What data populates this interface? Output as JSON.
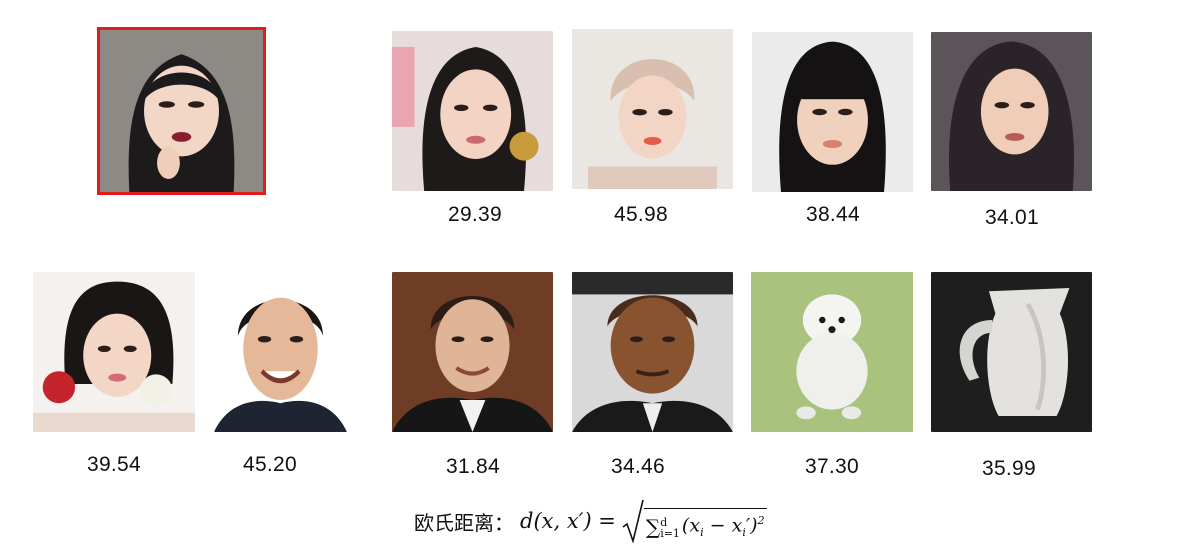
{
  "query": {
    "name": "query-face-photo"
  },
  "results": [
    {
      "id": "r1",
      "score": "29.39"
    },
    {
      "id": "r2",
      "score": "45.98"
    },
    {
      "id": "r3",
      "score": "38.44"
    },
    {
      "id": "r4",
      "score": "34.01"
    },
    {
      "id": "r5",
      "score": "39.54"
    },
    {
      "id": "r6",
      "score": "45.20"
    },
    {
      "id": "r7",
      "score": "31.84"
    },
    {
      "id": "r8",
      "score": "34.46"
    },
    {
      "id": "r9",
      "score": "37.30"
    },
    {
      "id": "r10",
      "score": "35.99"
    }
  ],
  "formula": {
    "label": "欧氏距离：",
    "lhs": "d(x, x′) =",
    "sum_symbol": "∑",
    "sum_upper": "d",
    "sum_lower": "i=1",
    "term": "(x",
    "term_sub": "i",
    "term_mid": " − x",
    "term_sub2": "i",
    "term_end": "′)",
    "term_exp": "2"
  },
  "colors": {
    "query_border": "#e01b1b",
    "text": "#111111"
  }
}
